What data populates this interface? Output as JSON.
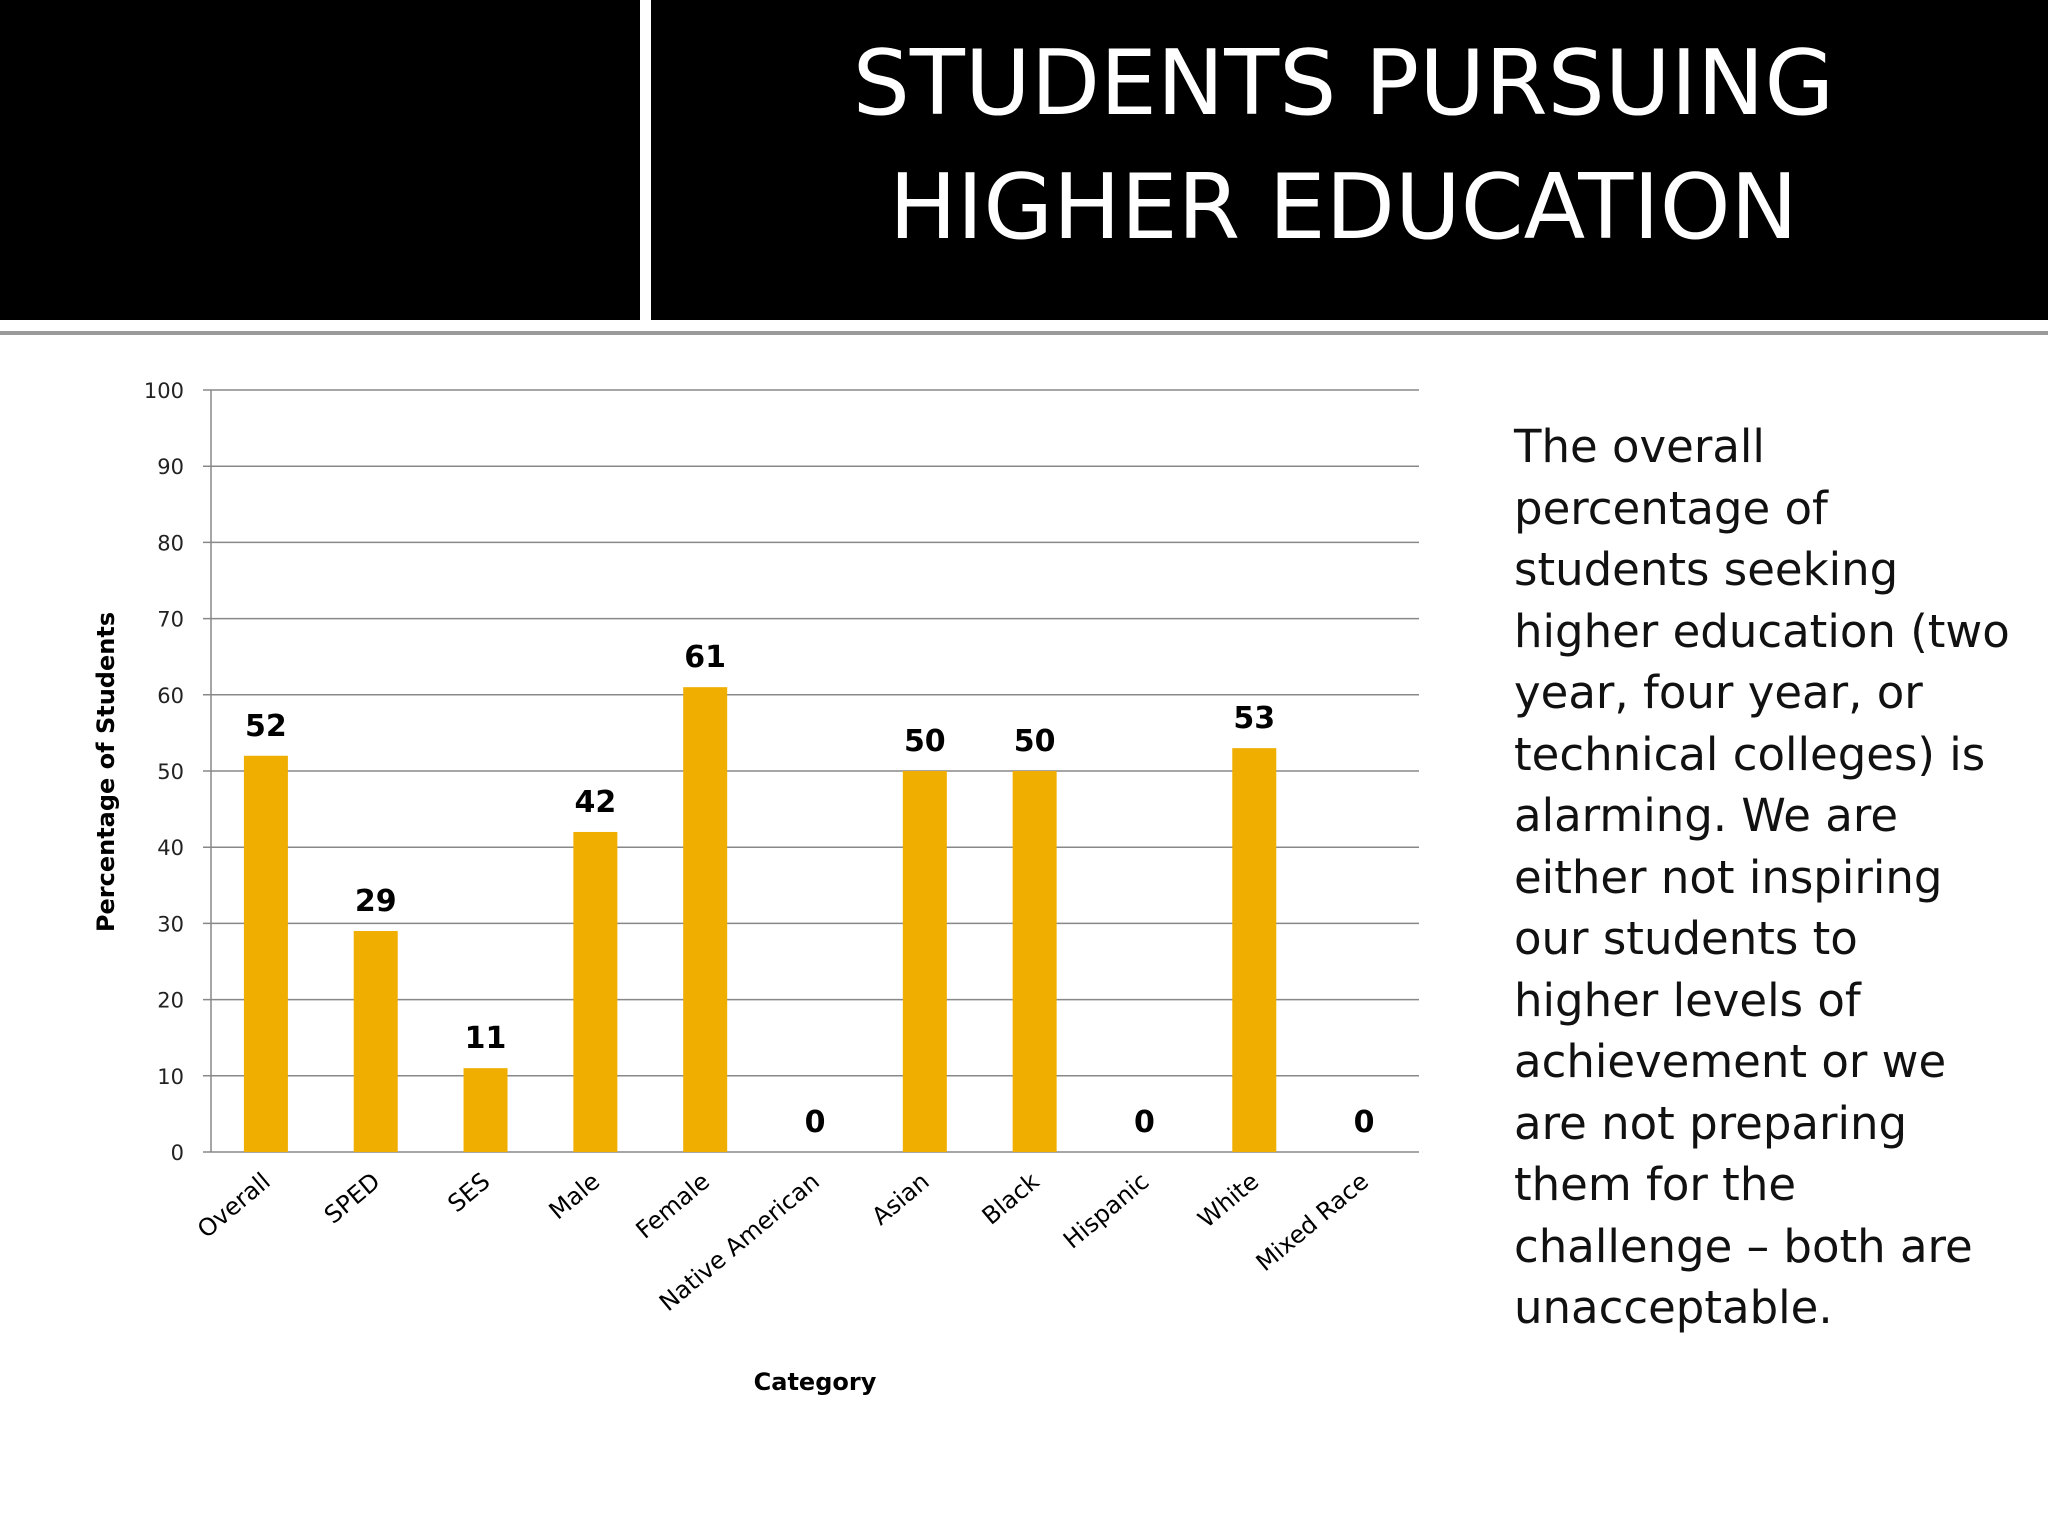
{
  "header": {
    "title_line1": "STUDENTS PURSUING",
    "title_line2": "HIGHER EDUCATION"
  },
  "colors": {
    "bar": "#EFAE00",
    "header_bg": "#000000",
    "grid": "#888888"
  },
  "chart_data": {
    "type": "bar",
    "title": "",
    "xlabel": "Category",
    "ylabel": "Percentage of Students",
    "ylim": [
      0,
      100
    ],
    "yticks": [
      0,
      10,
      20,
      30,
      40,
      50,
      60,
      70,
      80,
      90,
      100
    ],
    "grid": true,
    "categories": [
      "Overall",
      "SPED",
      "SES",
      "Male",
      "Female",
      "Native American",
      "Asian",
      "Black",
      "Hispanic",
      "White",
      "Mixed Race"
    ],
    "values": [
      52,
      29,
      11,
      42,
      61,
      0,
      50,
      50,
      0,
      53,
      0
    ],
    "data_labels": [
      "52",
      "29",
      "11",
      "42",
      "61",
      "0",
      "50",
      "50",
      "0",
      "53",
      "0"
    ]
  },
  "side_text": "The overall percentage of students seeking higher education (two year, four year, or technical colleges) is alarming.  We are either not inspiring our students to higher levels of achievement or we are not preparing them for the challenge – both are unacceptable."
}
